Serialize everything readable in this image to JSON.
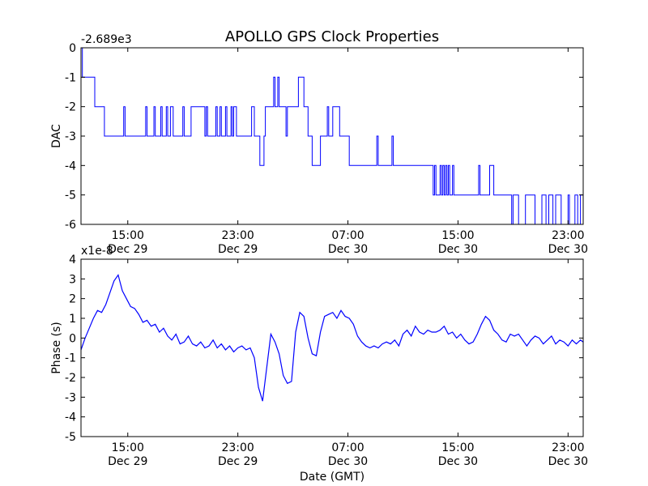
{
  "title": "APOLLO GPS Clock Properties",
  "chart_data": [
    {
      "type": "line",
      "ylabel": "DAC",
      "offset_text": "-2.689e3",
      "x_axis": "time (hours since Dec 29 11:36 GMT)",
      "xlim": [
        0,
        36.5
      ],
      "ylim": [
        -6,
        0
      ],
      "yticks": [
        0,
        -1,
        -2,
        -3,
        -4,
        -5,
        -6
      ],
      "ytick_labels": [
        "0",
        "-1",
        "-2",
        "-3",
        "-4",
        "-5",
        "-6"
      ],
      "xtick_labels": [
        [
          "15:00",
          "Dec 29"
        ],
        [
          "23:00",
          "Dec 29"
        ],
        [
          "07:00",
          "Dec 30"
        ],
        [
          "15:00",
          "Dec 30"
        ],
        [
          "23:00",
          "Dec 30"
        ]
      ],
      "xticks": [
        3.4,
        11.4,
        19.4,
        27.4,
        35.4
      ],
      "color": "#0000ff",
      "series": [
        {
          "name": "DAC",
          "x": [
            0,
            0.1,
            0.4,
            0.6,
            1.0,
            1.3,
            1.7,
            2.1,
            3.0,
            3.1,
            3.2,
            3.9,
            4.6,
            4.7,
            4.8,
            5.3,
            5.4,
            5.8,
            5.9,
            6.2,
            6.3,
            6.5,
            6.7,
            6.8,
            7.0,
            7.3,
            7.4,
            7.5,
            8.0,
            9.0,
            9.1,
            9.2,
            9.8,
            9.9,
            10.1,
            10.2,
            10.5,
            10.6,
            10.9,
            11.0,
            11.1,
            11.3,
            11.5,
            12.3,
            12.4,
            12.6,
            12.7,
            12.9,
            13.0,
            13.3,
            13.4,
            14.0,
            14.1,
            14.3,
            14.4,
            14.9,
            15.0,
            15.2,
            15.6,
            15.8,
            16.0,
            16.1,
            16.2,
            16.4,
            16.5,
            16.8,
            17.4,
            17.9,
            18.0,
            18.3,
            18.8,
            19.1,
            19.5,
            19.7,
            21.4,
            21.5,
            21.6,
            21.8,
            22.6,
            22.7,
            22.8,
            24.0,
            25.5,
            25.6,
            25.7,
            25.8,
            26.1,
            26.2,
            26.3,
            26.4,
            26.5,
            26.6,
            26.7,
            26.8,
            27.0,
            27.1,
            27.2,
            28.7,
            28.8,
            28.9,
            29.0,
            29.3,
            29.4,
            29.6,
            29.7,
            30.0,
            30.2,
            31.3,
            31.4,
            31.7,
            31.8,
            32.3,
            32.4,
            33.0,
            33.5,
            33.8,
            34.0,
            34.3,
            34.5,
            34.7,
            34.9,
            35.4,
            35.5,
            35.9,
            36.1,
            36.3,
            36.5
          ],
          "y": [
            0,
            -1,
            -1,
            -1,
            -2,
            -2,
            -3,
            -3,
            -3,
            -2,
            -3,
            -3,
            -3,
            -2,
            -3,
            -2,
            -3,
            -2,
            -3,
            -2,
            -3,
            -2,
            -3,
            -3,
            -3,
            -3,
            -2,
            -3,
            -2,
            -3,
            -2,
            -3,
            -2,
            -3,
            -2,
            -3,
            -2,
            -3,
            -2,
            -3,
            -2,
            -3,
            -3,
            -3,
            -2,
            -3,
            -3,
            -3,
            -4,
            -3,
            -2,
            -1,
            -2,
            -1,
            -2,
            -3,
            -2,
            -2,
            -2,
            -1,
            -1,
            -1,
            -2,
            -2,
            -3,
            -4,
            -3,
            -2,
            -3,
            -2,
            -3,
            -3,
            -4,
            -4,
            -4,
            -3,
            -4,
            -4,
            -3,
            -4,
            -4,
            -4,
            -4,
            -5,
            -4,
            -5,
            -4,
            -5,
            -4,
            -5,
            -4,
            -5,
            -4,
            -5,
            -4,
            -5,
            -5,
            -5,
            -5,
            -4,
            -5,
            -5,
            -5,
            -5,
            -4,
            -5,
            -5,
            -6,
            -5,
            -5,
            -6,
            -5,
            -5,
            -6,
            -5,
            -6,
            -5,
            -6,
            -5,
            -5,
            -6,
            -5,
            -6,
            -5,
            -6,
            -5,
            -6
          ]
        }
      ]
    },
    {
      "type": "line",
      "xlabel": "Date (GMT)",
      "ylabel": "Phase (s)",
      "offset_text": "x1e-8",
      "x_axis": "time (hours since Dec 29 11:36 GMT)",
      "xlim": [
        0,
        36.5
      ],
      "ylim": [
        -5,
        4
      ],
      "yticks": [
        4,
        3,
        2,
        1,
        0,
        -1,
        -2,
        -3,
        -4,
        -5
      ],
      "ytick_labels": [
        "4",
        "3",
        "2",
        "1",
        "0",
        "-1",
        "-2",
        "-3",
        "-4",
        "-5"
      ],
      "xtick_labels": [
        [
          "15:00",
          "Dec 29"
        ],
        [
          "23:00",
          "Dec 29"
        ],
        [
          "07:00",
          "Dec 30"
        ],
        [
          "15:00",
          "Dec 30"
        ],
        [
          "23:00",
          "Dec 30"
        ]
      ],
      "xticks": [
        3.4,
        11.4,
        19.4,
        27.4,
        35.4
      ],
      "color": "#0000ff",
      "series": [
        {
          "name": "Phase",
          "x": [
            0,
            0.3,
            0.6,
            0.9,
            1.2,
            1.5,
            1.8,
            2.1,
            2.4,
            2.7,
            3.0,
            3.3,
            3.6,
            3.9,
            4.2,
            4.5,
            4.8,
            5.1,
            5.4,
            5.7,
            6.0,
            6.3,
            6.6,
            6.9,
            7.2,
            7.5,
            7.8,
            8.1,
            8.4,
            8.7,
            9.0,
            9.3,
            9.6,
            9.9,
            10.2,
            10.5,
            10.8,
            11.1,
            11.4,
            11.7,
            12.0,
            12.3,
            12.6,
            12.9,
            13.2,
            13.5,
            13.8,
            14.1,
            14.4,
            14.7,
            15.0,
            15.3,
            15.6,
            15.9,
            16.2,
            16.5,
            16.8,
            17.1,
            17.4,
            17.7,
            18.0,
            18.3,
            18.6,
            18.9,
            19.2,
            19.5,
            19.8,
            20.1,
            20.4,
            20.7,
            21.0,
            21.3,
            21.6,
            21.9,
            22.2,
            22.5,
            22.8,
            23.1,
            23.4,
            23.7,
            24.0,
            24.3,
            24.6,
            24.9,
            25.2,
            25.5,
            25.8,
            26.1,
            26.4,
            26.7,
            27.0,
            27.3,
            27.6,
            27.9,
            28.2,
            28.5,
            28.8,
            29.1,
            29.4,
            29.7,
            30.0,
            30.3,
            30.6,
            30.9,
            31.2,
            31.5,
            31.8,
            32.1,
            32.4,
            32.7,
            33.0,
            33.3,
            33.6,
            33.9,
            34.2,
            34.5,
            34.8,
            35.1,
            35.4,
            35.7,
            36.0,
            36.3,
            36.5
          ],
          "y": [
            -0.6,
            0.0,
            0.5,
            1.0,
            1.4,
            1.3,
            1.7,
            2.3,
            2.9,
            3.2,
            2.4,
            2.0,
            1.6,
            1.5,
            1.2,
            0.8,
            0.9,
            0.6,
            0.7,
            0.3,
            0.5,
            0.1,
            -0.1,
            0.2,
            -0.3,
            -0.2,
            0.1,
            -0.3,
            -0.4,
            -0.2,
            -0.5,
            -0.4,
            -0.1,
            -0.5,
            -0.3,
            -0.6,
            -0.4,
            -0.7,
            -0.5,
            -0.4,
            -0.6,
            -0.5,
            -1.0,
            -2.5,
            -3.2,
            -1.5,
            0.2,
            -0.2,
            -0.8,
            -1.9,
            -2.3,
            -2.2,
            0.3,
            1.3,
            1.1,
            0.0,
            -0.8,
            -0.9,
            0.3,
            1.1,
            1.2,
            1.3,
            1.0,
            1.4,
            1.1,
            1.0,
            0.7,
            0.1,
            -0.2,
            -0.4,
            -0.5,
            -0.4,
            -0.5,
            -0.3,
            -0.2,
            -0.3,
            -0.1,
            -0.4,
            0.2,
            0.4,
            0.1,
            0.6,
            0.3,
            0.2,
            0.4,
            0.3,
            0.3,
            0.4,
            0.6,
            0.2,
            0.3,
            0.0,
            0.2,
            -0.1,
            -0.3,
            -0.2,
            0.2,
            0.7,
            1.1,
            0.9,
            0.4,
            0.2,
            -0.1,
            -0.2,
            0.2,
            0.1,
            0.2,
            -0.1,
            -0.4,
            -0.1,
            0.1,
            0.0,
            -0.3,
            -0.1,
            0.1,
            -0.3,
            -0.1,
            -0.2,
            -0.4,
            -0.1,
            -0.3,
            -0.1,
            -0.2
          ]
        }
      ]
    }
  ]
}
